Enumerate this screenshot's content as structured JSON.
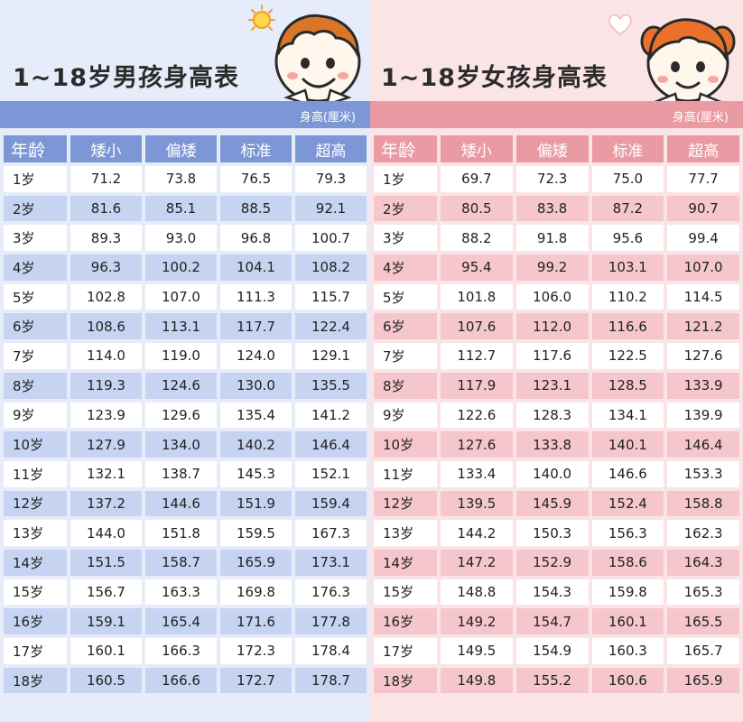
{
  "boys": {
    "title": "1~18岁男孩身高表",
    "unit": "身高(厘米)",
    "headers": [
      "年龄",
      "矮小",
      "偏矮",
      "标准",
      "超高"
    ],
    "rows": [
      [
        "1岁",
        "71.2",
        "73.8",
        "76.5",
        "79.3"
      ],
      [
        "2岁",
        "81.6",
        "85.1",
        "88.5",
        "92.1"
      ],
      [
        "3岁",
        "89.3",
        "93.0",
        "96.8",
        "100.7"
      ],
      [
        "4岁",
        "96.3",
        "100.2",
        "104.1",
        "108.2"
      ],
      [
        "5岁",
        "102.8",
        "107.0",
        "111.3",
        "115.7"
      ],
      [
        "6岁",
        "108.6",
        "113.1",
        "117.7",
        "122.4"
      ],
      [
        "7岁",
        "114.0",
        "119.0",
        "124.0",
        "129.1"
      ],
      [
        "8岁",
        "119.3",
        "124.6",
        "130.0",
        "135.5"
      ],
      [
        "9岁",
        "123.9",
        "129.6",
        "135.4",
        "141.2"
      ],
      [
        "10岁",
        "127.9",
        "134.0",
        "140.2",
        "146.4"
      ],
      [
        "11岁",
        "132.1",
        "138.7",
        "145.3",
        "152.1"
      ],
      [
        "12岁",
        "137.2",
        "144.6",
        "151.9",
        "159.4"
      ],
      [
        "13岁",
        "144.0",
        "151.8",
        "159.5",
        "167.3"
      ],
      [
        "14岁",
        "151.5",
        "158.7",
        "165.9",
        "173.1"
      ],
      [
        "15岁",
        "156.7",
        "163.3",
        "169.8",
        "176.3"
      ],
      [
        "16岁",
        "159.1",
        "165.4",
        "171.6",
        "177.8"
      ],
      [
        "17岁",
        "160.1",
        "166.3",
        "172.3",
        "178.4"
      ],
      [
        "18岁",
        "160.5",
        "166.6",
        "172.7",
        "178.7"
      ]
    ]
  },
  "girls": {
    "title": "1~18岁女孩身高表",
    "unit": "身高(厘米)",
    "headers": [
      "年龄",
      "矮小",
      "偏矮",
      "标准",
      "超高"
    ],
    "rows": [
      [
        "1岁",
        "69.7",
        "72.3",
        "75.0",
        "77.7"
      ],
      [
        "2岁",
        "80.5",
        "83.8",
        "87.2",
        "90.7"
      ],
      [
        "3岁",
        "88.2",
        "91.8",
        "95.6",
        "99.4"
      ],
      [
        "4岁",
        "95.4",
        "99.2",
        "103.1",
        "107.0"
      ],
      [
        "5岁",
        "101.8",
        "106.0",
        "110.2",
        "114.5"
      ],
      [
        "6岁",
        "107.6",
        "112.0",
        "116.6",
        "121.2"
      ],
      [
        "7岁",
        "112.7",
        "117.6",
        "122.5",
        "127.6"
      ],
      [
        "8岁",
        "117.9",
        "123.1",
        "128.5",
        "133.9"
      ],
      [
        "9岁",
        "122.6",
        "128.3",
        "134.1",
        "139.9"
      ],
      [
        "10岁",
        "127.6",
        "133.8",
        "140.1",
        "146.4"
      ],
      [
        "11岁",
        "133.4",
        "140.0",
        "146.6",
        "153.3"
      ],
      [
        "12岁",
        "139.5",
        "145.9",
        "152.4",
        "158.8"
      ],
      [
        "13岁",
        "144.2",
        "150.3",
        "156.3",
        "162.3"
      ],
      [
        "14岁",
        "147.2",
        "152.9",
        "158.6",
        "164.3"
      ],
      [
        "15岁",
        "148.8",
        "154.3",
        "159.8",
        "165.3"
      ],
      [
        "16岁",
        "149.2",
        "154.7",
        "160.1",
        "165.5"
      ],
      [
        "17岁",
        "149.5",
        "154.9",
        "160.3",
        "165.7"
      ],
      [
        "18岁",
        "149.8",
        "155.2",
        "160.6",
        "165.9"
      ]
    ]
  },
  "colors": {
    "boys_accent": "#7c96d6",
    "boys_stripe": "#c6d3f1",
    "boys_background": "#e6ecf9",
    "girls_accent": "#ea9aa3",
    "girls_stripe": "#f5c6cc",
    "girls_background": "#fbe4e6"
  },
  "icons": [
    "sun-icon",
    "boy-mascot-icon",
    "heart-icon",
    "girl-mascot-icon"
  ]
}
